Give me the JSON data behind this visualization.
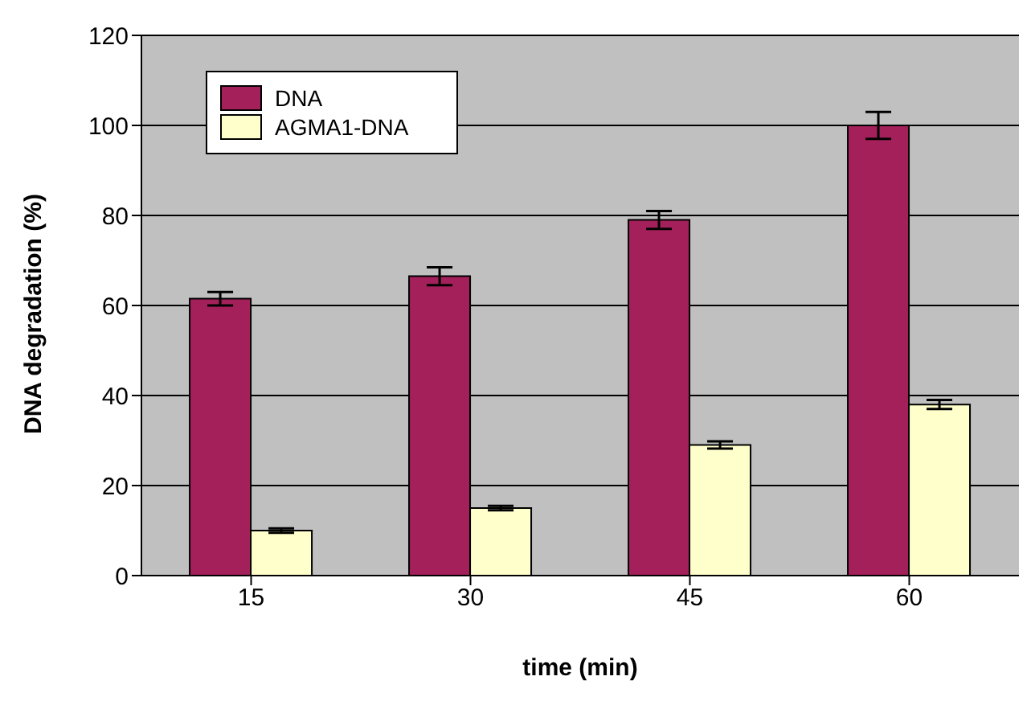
{
  "chart_data": {
    "type": "bar",
    "xlabel": "time (min)",
    "ylabel": "DNA degradation (%)",
    "categories": [
      "15",
      "30",
      "45",
      "60"
    ],
    "series": [
      {
        "name": "DNA",
        "color": "#a3205a",
        "values": [
          61.5,
          66.5,
          79,
          100
        ],
        "errors": [
          1.5,
          2,
          2,
          3
        ]
      },
      {
        "name": "AGMA1-DNA",
        "color": "#ffffcc",
        "values": [
          10,
          15,
          29,
          38
        ],
        "errors": [
          0.5,
          0.5,
          0.8,
          1
        ]
      }
    ],
    "ylim": [
      0,
      120
    ],
    "yticks": [
      0,
      20,
      40,
      60,
      80,
      100,
      120
    ],
    "grid": "y",
    "legend": "top left"
  }
}
